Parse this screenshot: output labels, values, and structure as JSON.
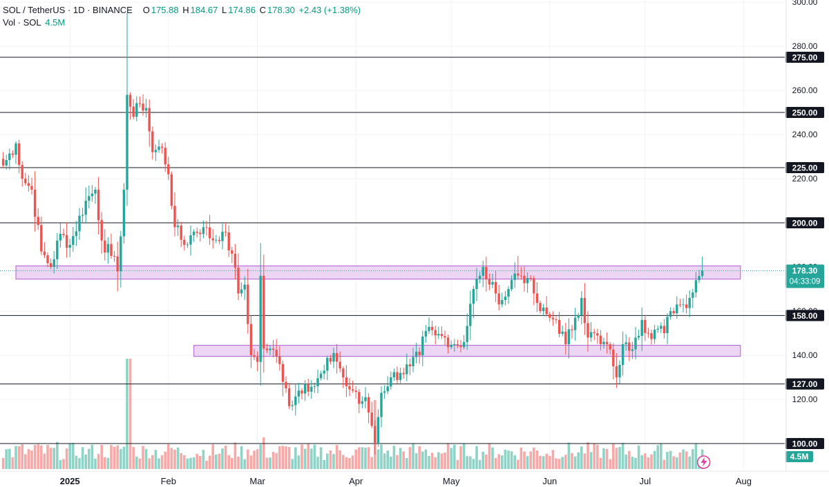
{
  "header": {
    "symbol": "SOL / TetherUS · 1D · BINANCE",
    "open_label": "O",
    "open": "175.88",
    "high_label": "H",
    "high": "184.67",
    "low_label": "L",
    "low": "174.86",
    "close_label": "C",
    "close": "178.30",
    "change": "+2.43 (+1.38%)",
    "vol_label": "Vol · SOL",
    "vol_value": "4.5M"
  },
  "colors": {
    "up": "#26a69a",
    "down": "#ef5350",
    "vol_up": "#8fd3c7",
    "vol_down": "#f7a9a7",
    "zone_fill": "#e6c8f0",
    "zone_stroke": "#b15fd0",
    "price_badge": "#26a69a",
    "level_line": "#131722"
  },
  "chart_data": {
    "type": "candlestick",
    "symbol": "SOL / TetherUS",
    "interval": "1D",
    "exchange": "BINANCE",
    "ylim": [
      91,
      301
    ],
    "price_axis_ticks": [
      "300.00",
      "280.00",
      "260.00",
      "240.00",
      "220.00",
      "200.00",
      "180.00",
      "160.00",
      "140.00",
      "120.00",
      "100.00"
    ],
    "x_tick_labels": [
      {
        "label": "2025",
        "date": "2025-01-01",
        "bold": true
      },
      {
        "label": "Feb",
        "date": "2025-02-01"
      },
      {
        "label": "Mar",
        "date": "2025-03-01"
      },
      {
        "label": "Apr",
        "date": "2025-04-01"
      },
      {
        "label": "May",
        "date": "2025-05-01"
      },
      {
        "label": "Jun",
        "date": "2025-06-01"
      },
      {
        "label": "Jul",
        "date": "2025-07-01"
      },
      {
        "label": "Aug",
        "date": "2025-08-01"
      }
    ],
    "horizontal_levels": [
      "275.00",
      "250.00",
      "225.00",
      "200.00",
      "158.00",
      "127.00",
      "100.00"
    ],
    "zones": [
      {
        "from": "2024-12-15",
        "to": "2025-07-31",
        "top": 180.5,
        "bottom": 174.5
      },
      {
        "from": "2025-02-09",
        "to": "2025-07-31",
        "top": 144.5,
        "bottom": 139.5
      }
    ],
    "current_price": "178.30",
    "countdown": "04:33:09",
    "volume_badge": "4.5M",
    "anchors": [
      {
        "date": "2024-12-11",
        "close": 226
      },
      {
        "date": "2024-12-15",
        "close": 236
      },
      {
        "date": "2024-12-17",
        "close": 220
      },
      {
        "date": "2024-12-20",
        "close": 215
      },
      {
        "date": "2024-12-23",
        "close": 187
      },
      {
        "date": "2024-12-26",
        "close": 180
      },
      {
        "date": "2024-12-29",
        "close": 195
      },
      {
        "date": "2025-01-01",
        "close": 190
      },
      {
        "date": "2025-01-06",
        "close": 210
      },
      {
        "date": "2025-01-09",
        "close": 215
      },
      {
        "date": "2025-01-11",
        "close": 192
      },
      {
        "date": "2025-01-14",
        "close": 185
      },
      {
        "date": "2025-01-16",
        "close": 178
      },
      {
        "date": "2025-01-18",
        "close": 215
      },
      {
        "date": "2025-01-19",
        "close": 258
      },
      {
        "date": "2025-01-21",
        "close": 248
      },
      {
        "date": "2025-01-23",
        "close": 254
      },
      {
        "date": "2025-01-25",
        "close": 252
      },
      {
        "date": "2025-01-27",
        "close": 232
      },
      {
        "date": "2025-01-30",
        "close": 234
      },
      {
        "date": "2025-02-01",
        "close": 222
      },
      {
        "date": "2025-02-03",
        "close": 198
      },
      {
        "date": "2025-02-06",
        "close": 190
      },
      {
        "date": "2025-02-09",
        "close": 196
      },
      {
        "date": "2025-02-12",
        "close": 198
      },
      {
        "date": "2025-02-15",
        "close": 192
      },
      {
        "date": "2025-02-18",
        "close": 196
      },
      {
        "date": "2025-02-21",
        "close": 186
      },
      {
        "date": "2025-02-23",
        "close": 168
      },
      {
        "date": "2025-02-25",
        "close": 172
      },
      {
        "date": "2025-02-27",
        "close": 140
      },
      {
        "date": "2025-03-01",
        "close": 137
      },
      {
        "date": "2025-03-02",
        "close": 176
      },
      {
        "date": "2025-03-03",
        "close": 143
      },
      {
        "date": "2025-03-05",
        "close": 143
      },
      {
        "date": "2025-03-08",
        "close": 136
      },
      {
        "date": "2025-03-10",
        "close": 125
      },
      {
        "date": "2025-03-11",
        "close": 117
      },
      {
        "date": "2025-03-14",
        "close": 124
      },
      {
        "date": "2025-03-16",
        "close": 127
      },
      {
        "date": "2025-03-19",
        "close": 126
      },
      {
        "date": "2025-03-22",
        "close": 133
      },
      {
        "date": "2025-03-25",
        "close": 141
      },
      {
        "date": "2025-03-27",
        "close": 134
      },
      {
        "date": "2025-03-29",
        "close": 126
      },
      {
        "date": "2025-03-31",
        "close": 124
      },
      {
        "date": "2025-04-02",
        "close": 118
      },
      {
        "date": "2025-04-04",
        "close": 121
      },
      {
        "date": "2025-04-06",
        "close": 108
      },
      {
        "date": "2025-04-07",
        "close": 100
      },
      {
        "date": "2025-04-08",
        "close": 112
      },
      {
        "date": "2025-04-09",
        "close": 123
      },
      {
        "date": "2025-04-12",
        "close": 130
      },
      {
        "date": "2025-04-15",
        "close": 132
      },
      {
        "date": "2025-04-18",
        "close": 135
      },
      {
        "date": "2025-04-21",
        "close": 140
      },
      {
        "date": "2025-04-23",
        "close": 151
      },
      {
        "date": "2025-04-26",
        "close": 149
      },
      {
        "date": "2025-04-29",
        "close": 148
      },
      {
        "date": "2025-05-02",
        "close": 145
      },
      {
        "date": "2025-05-05",
        "close": 146
      },
      {
        "date": "2025-05-08",
        "close": 170
      },
      {
        "date": "2025-05-10",
        "close": 176
      },
      {
        "date": "2025-05-11",
        "close": 180
      },
      {
        "date": "2025-05-13",
        "close": 172
      },
      {
        "date": "2025-05-15",
        "close": 168
      },
      {
        "date": "2025-05-17",
        "close": 165
      },
      {
        "date": "2025-05-19",
        "close": 170
      },
      {
        "date": "2025-05-21",
        "close": 177
      },
      {
        "date": "2025-05-23",
        "close": 176
      },
      {
        "date": "2025-05-25",
        "close": 175
      },
      {
        "date": "2025-05-27",
        "close": 168
      },
      {
        "date": "2025-05-29",
        "close": 160
      },
      {
        "date": "2025-06-01",
        "close": 157
      },
      {
        "date": "2025-06-03",
        "close": 156
      },
      {
        "date": "2025-06-06",
        "close": 145
      },
      {
        "date": "2025-06-09",
        "close": 157
      },
      {
        "date": "2025-06-11",
        "close": 166
      },
      {
        "date": "2025-06-13",
        "close": 148
      },
      {
        "date": "2025-06-15",
        "close": 150
      },
      {
        "date": "2025-06-17",
        "close": 145
      },
      {
        "date": "2025-06-19",
        "close": 145
      },
      {
        "date": "2025-06-21",
        "close": 135
      },
      {
        "date": "2025-06-22",
        "close": 130
      },
      {
        "date": "2025-06-24",
        "close": 145
      },
      {
        "date": "2025-06-26",
        "close": 142
      },
      {
        "date": "2025-06-28",
        "close": 148
      },
      {
        "date": "2025-06-30",
        "close": 156
      },
      {
        "date": "2025-07-02",
        "close": 150
      },
      {
        "date": "2025-07-05",
        "close": 152
      },
      {
        "date": "2025-07-07",
        "close": 150
      },
      {
        "date": "2025-07-09",
        "close": 160
      },
      {
        "date": "2025-07-11",
        "close": 163
      },
      {
        "date": "2025-07-13",
        "close": 163
      },
      {
        "date": "2025-07-15",
        "close": 166
      },
      {
        "date": "2025-07-17",
        "close": 174
      },
      {
        "date": "2025-07-18",
        "close": 175.88
      },
      {
        "date": "2025-07-19",
        "open": 175.88,
        "high": 184.67,
        "low": 174.86,
        "close": 178.3
      }
    ]
  }
}
